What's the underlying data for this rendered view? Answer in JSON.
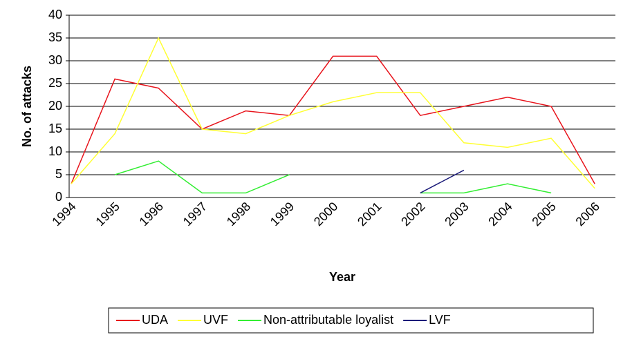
{
  "chart_data": {
    "type": "line",
    "x_label": "Year",
    "y_label": "No. of attacks",
    "categories": [
      "1994",
      "1995",
      "1996",
      "1997",
      "1998",
      "1999",
      "2000",
      "2001",
      "2002",
      "2003",
      "2004",
      "2005",
      "2006"
    ],
    "series": [
      {
        "name": "UDA",
        "color": "#e8141c",
        "values": [
          3,
          26,
          24,
          15,
          19,
          18,
          31,
          31,
          18,
          20,
          22,
          20,
          3
        ]
      },
      {
        "name": "UVF",
        "color": "#ffff33",
        "values": [
          3,
          14,
          35,
          15,
          14,
          18,
          21,
          23,
          23,
          12,
          11,
          13,
          2
        ]
      },
      {
        "name": "Non-attributable loyalist",
        "color": "#33ee33",
        "values": [
          null,
          5,
          8,
          1,
          1,
          5,
          null,
          null,
          1,
          1,
          3,
          1,
          null
        ]
      },
      {
        "name": "LVF",
        "color": "#1c1c7a",
        "values": [
          null,
          null,
          null,
          null,
          null,
          null,
          null,
          null,
          1,
          6,
          null,
          null,
          null
        ]
      }
    ],
    "ylim": [
      0,
      40
    ],
    "yticks": [
      0,
      5,
      10,
      15,
      20,
      25,
      30,
      35,
      40
    ],
    "grid": true,
    "legend": "bottom"
  }
}
